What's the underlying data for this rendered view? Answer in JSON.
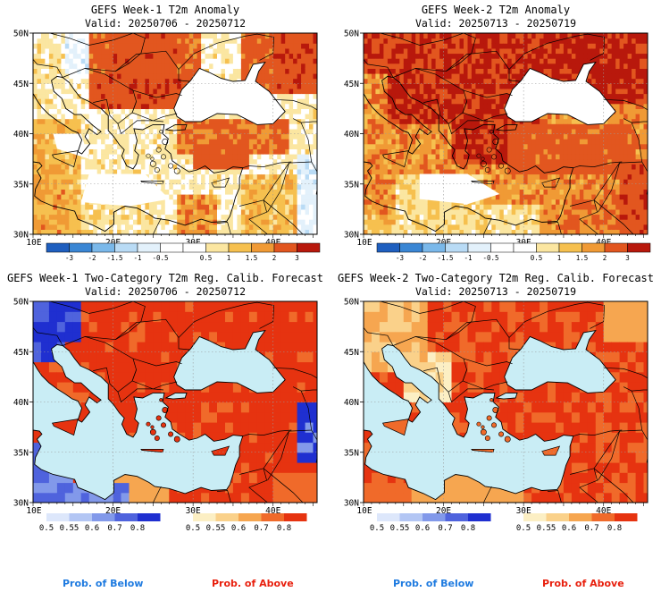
{
  "colors": {
    "sea": "#c9edf5",
    "anom": [
      "#1f5fbf",
      "#3a86d4",
      "#7ab8ea",
      "#b9dbf5",
      "#e3f1fb",
      "#ffffff",
      "#ffffff",
      "#fbe6a1",
      "#f6c04f",
      "#f09a35",
      "#e2561f",
      "#b8180c"
    ],
    "below": [
      "#dde7fb",
      "#b3c6f4",
      "#8299ea",
      "#4f63dd",
      "#1f2fd0"
    ],
    "above": [
      "#fcefc4",
      "#fad18a",
      "#f6a650",
      "#f06a2a",
      "#e63310"
    ]
  },
  "panels": [
    {
      "id": "week1-anomaly",
      "title": "GEFS Week-1 T2m Anomaly",
      "valid": "Valid: 20250706 - 20250712",
      "kind": "anomaly",
      "lat_labels": [
        "50N",
        "45N",
        "40N",
        "35N",
        "30N"
      ],
      "lon_labels": [
        "10E",
        "20E",
        "30E",
        "40E"
      ],
      "scale_labels": [
        "-3",
        "-2",
        "-1.5",
        "-1",
        "-0.5",
        "0.5",
        "1",
        "1.5",
        "2",
        "3"
      ]
    },
    {
      "id": "week2-anomaly",
      "title": "GEFS Week-2 T2m Anomaly",
      "valid": "Valid: 20250713 - 20250719",
      "kind": "anomaly",
      "lat_labels": [
        "50N",
        "45N",
        "40N",
        "35N",
        "30N"
      ],
      "lon_labels": [
        "10E",
        "20E",
        "30E",
        "40E"
      ],
      "scale_labels": [
        "-3",
        "-2",
        "-1.5",
        "-1",
        "-0.5",
        "0.5",
        "1",
        "1.5",
        "2",
        "3"
      ]
    },
    {
      "id": "week1-prob",
      "title": "GEFS Week-1 Two-Category T2m Reg. Calib. Forecast",
      "valid": "Valid: 20250706 - 20250712",
      "kind": "prob",
      "lat_labels": [
        "50N",
        "45N",
        "40N",
        "35N",
        "30N"
      ],
      "lon_labels": [
        "10E",
        "20E",
        "30E",
        "40E"
      ],
      "below_labels": [
        "0.5",
        "0.55",
        "0.6",
        "0.7",
        "0.8"
      ],
      "above_labels": [
        "0.5",
        "0.55",
        "0.6",
        "0.7",
        "0.8"
      ],
      "below_title": "Prob. of Below",
      "above_title": "Prob. of Above"
    },
    {
      "id": "week2-prob",
      "title": "GEFS Week-2 Two-Category T2m Reg. Calib. Forecast",
      "valid": "Valid: 20250713 - 20250719",
      "kind": "prob",
      "lat_labels": [
        "50N",
        "45N",
        "40N",
        "35N",
        "30N"
      ],
      "lon_labels": [
        "10E",
        "20E",
        "30E",
        "40E"
      ],
      "below_labels": [
        "0.5",
        "0.55",
        "0.6",
        "0.7",
        "0.8"
      ],
      "above_labels": [
        "0.5",
        "0.55",
        "0.6",
        "0.7",
        "0.8"
      ],
      "below_title": "Prob. of Below",
      "above_title": "Prob. of Above"
    }
  ]
}
